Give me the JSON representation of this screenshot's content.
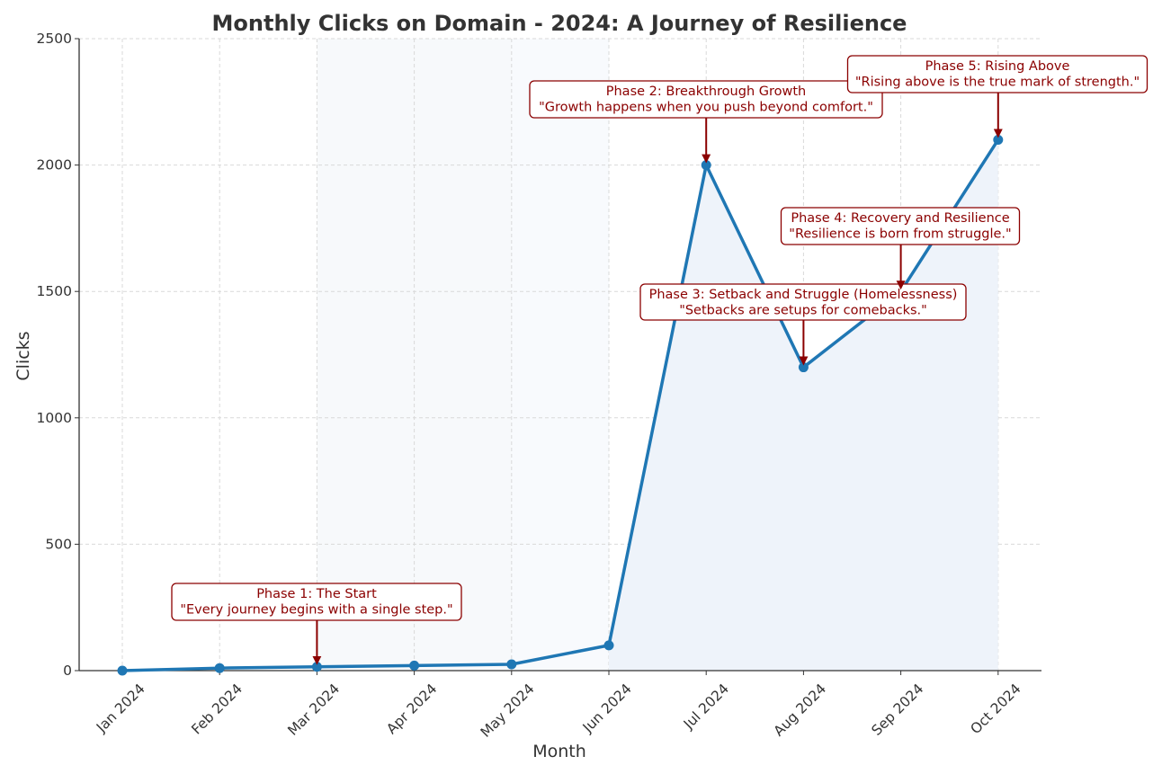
{
  "chart_data": {
    "type": "line",
    "title": "Monthly Clicks on Domain - 2024: A Journey of Resilience",
    "xlabel": "Month",
    "ylabel": "Clicks",
    "categories": [
      "Jan 2024",
      "Feb 2024",
      "Mar 2024",
      "Apr 2024",
      "May 2024",
      "Jun 2024",
      "Jul 2024",
      "Aug 2024",
      "Sep 2024",
      "Oct 2024"
    ],
    "series": [
      {
        "values": [
          0,
          10,
          15,
          20,
          25,
          100,
          2000,
          1200,
          1500,
          2100
        ]
      }
    ],
    "ylim": [
      0,
      2500
    ],
    "yticks": [
      0,
      500,
      1000,
      1500,
      2000,
      2500
    ],
    "grid": true,
    "legend": "none",
    "line_color": "#1f77b4",
    "fill_color": "#eef3fa",
    "annotation_color": "#8b0000",
    "annotations": [
      {
        "point_index": 2,
        "lines": [
          "Phase 1: The Start",
          "\"Every journey begins with a single step.\""
        ]
      },
      {
        "point_index": 6,
        "lines": [
          "Phase 2: Breakthrough Growth",
          "\"Growth happens when you push beyond comfort.\""
        ]
      },
      {
        "point_index": 7,
        "lines": [
          "Phase 3: Setback and Struggle (Homelessness)",
          "\"Setbacks are setups for comebacks.\""
        ]
      },
      {
        "point_index": 8,
        "lines": [
          "Phase 4: Recovery and Resilience",
          "\"Resilience is born from struggle.\""
        ]
      },
      {
        "point_index": 9,
        "lines": [
          "Phase 5: Rising Above",
          "\"Rising above is the true mark of strength.\""
        ]
      }
    ]
  }
}
